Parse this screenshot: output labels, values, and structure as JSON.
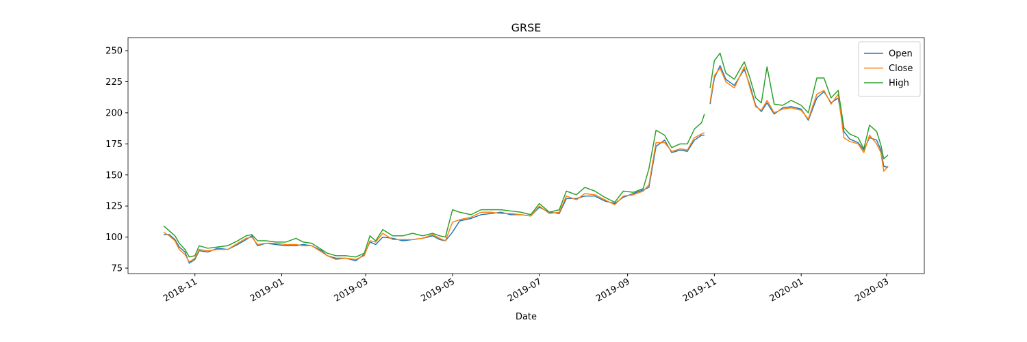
{
  "chart_data": {
    "type": "line",
    "title": "GRSE",
    "x_label": "Date",
    "x": [
      17814,
      17818,
      17822,
      17825,
      17829,
      17832,
      17836,
      17839,
      17845,
      17852,
      17859,
      17866,
      17872,
      17876,
      17880,
      17886,
      17893,
      17900,
      17907,
      17912,
      17918,
      17925,
      17929,
      17935,
      17942,
      17949,
      17955,
      17959,
      17963,
      17968,
      17975,
      17982,
      17989,
      17996,
      18003,
      18008,
      18012,
      18017,
      18022,
      18030,
      18037,
      18044,
      18051,
      18058,
      18065,
      18072,
      18078,
      18085,
      18092,
      18097,
      18104,
      18110,
      18117,
      18124,
      18131,
      18137,
      18144,
      18151,
      18155,
      18160,
      18166,
      18171,
      18177,
      18182,
      18187,
      18192,
      18194,
      18196,
      18198,
      18201,
      18205,
      18209,
      18215,
      18222,
      18226,
      18230,
      18234,
      18238,
      18243,
      18249,
      18255,
      18262,
      18267,
      18273,
      18278,
      18283,
      18288,
      18292,
      18296,
      18302,
      18306,
      18310,
      18315,
      18318,
      18320,
      18323
    ],
    "series": [
      {
        "name": "Open",
        "color": "#1f77b4",
        "values": [
          102,
          102,
          98,
          92,
          88,
          79,
          82,
          89,
          88,
          91,
          90,
          94,
          98,
          101,
          93,
          95,
          94,
          93,
          93,
          94,
          93,
          89,
          85,
          83,
          83,
          81,
          86,
          96,
          94,
          100,
          99,
          97,
          98,
          99,
          101,
          98,
          97,
          104,
          113,
          115,
          118,
          119,
          120,
          118,
          118,
          117,
          124,
          120,
          119,
          131,
          131,
          133,
          133,
          129,
          127,
          132,
          135,
          138,
          140,
          173,
          178,
          168,
          170,
          169,
          178,
          182,
          182,
          null,
          207,
          228,
          238,
          227,
          222,
          235,
          222,
          206,
          201,
          208,
          199,
          204,
          205,
          203,
          194,
          212,
          217,
          208,
          212,
          185,
          179,
          176,
          170,
          180,
          178,
          170,
          157,
          156
        ]
      },
      {
        "name": "Close",
        "color": "#ff7f0e",
        "values": [
          104,
          101,
          97,
          90,
          86,
          80,
          83,
          90,
          89,
          90,
          90,
          95,
          99,
          100,
          94,
          95,
          95,
          94,
          94,
          93,
          93,
          88,
          85,
          82,
          83,
          82,
          85,
          97,
          96,
          103,
          98,
          98,
          98,
          99,
          102,
          99,
          97,
          112,
          114,
          116,
          120,
          120,
          119,
          119,
          118,
          117,
          125,
          119,
          120,
          133,
          130,
          135,
          134,
          130,
          126,
          133,
          134,
          137,
          142,
          176,
          176,
          169,
          171,
          170,
          180,
          183,
          184,
          null,
          209,
          230,
          236,
          225,
          220,
          237,
          220,
          205,
          202,
          210,
          200,
          203,
          204,
          202,
          195,
          215,
          218,
          207,
          215,
          180,
          177,
          175,
          168,
          182,
          175,
          168,
          153,
          157
        ]
      },
      {
        "name": "High",
        "color": "#2ca02c",
        "values": [
          109,
          105,
          101,
          95,
          90,
          84,
          85,
          93,
          91,
          92,
          93,
          97,
          101,
          102,
          97,
          97,
          96,
          96,
          99,
          96,
          95,
          90,
          87,
          85,
          85,
          84,
          87,
          101,
          97,
          106,
          101,
          101,
          103,
          101,
          103,
          101,
          100,
          122,
          120,
          118,
          122,
          122,
          122,
          121,
          120,
          118,
          127,
          120,
          122,
          137,
          134,
          140,
          137,
          132,
          128,
          137,
          136,
          139,
          155,
          186,
          182,
          172,
          175,
          175,
          187,
          192,
          199,
          null,
          220,
          242,
          248,
          232,
          227,
          241,
          228,
          212,
          208,
          237,
          207,
          206,
          210,
          206,
          200,
          228,
          228,
          212,
          218,
          188,
          183,
          180,
          171,
          190,
          185,
          174,
          163,
          166
        ]
      }
    ],
    "xlim": [
      17789,
      18348.5
    ],
    "xticks": [
      {
        "value": 17836,
        "label": "2018-11"
      },
      {
        "value": 17897,
        "label": "2019-01"
      },
      {
        "value": 17956,
        "label": "2019-03"
      },
      {
        "value": 18017,
        "label": "2019-05"
      },
      {
        "value": 18078,
        "label": "2019-07"
      },
      {
        "value": 18140,
        "label": "2019-09"
      },
      {
        "value": 18201,
        "label": "2019-11"
      },
      {
        "value": 18262,
        "label": "2020-01"
      },
      {
        "value": 18322,
        "label": "2020-03"
      }
    ],
    "ylim": [
      70.6,
      260.5
    ],
    "yticks": [
      75,
      100,
      125,
      150,
      175,
      200,
      225,
      250
    ],
    "legend": "upper right",
    "grid": false
  }
}
